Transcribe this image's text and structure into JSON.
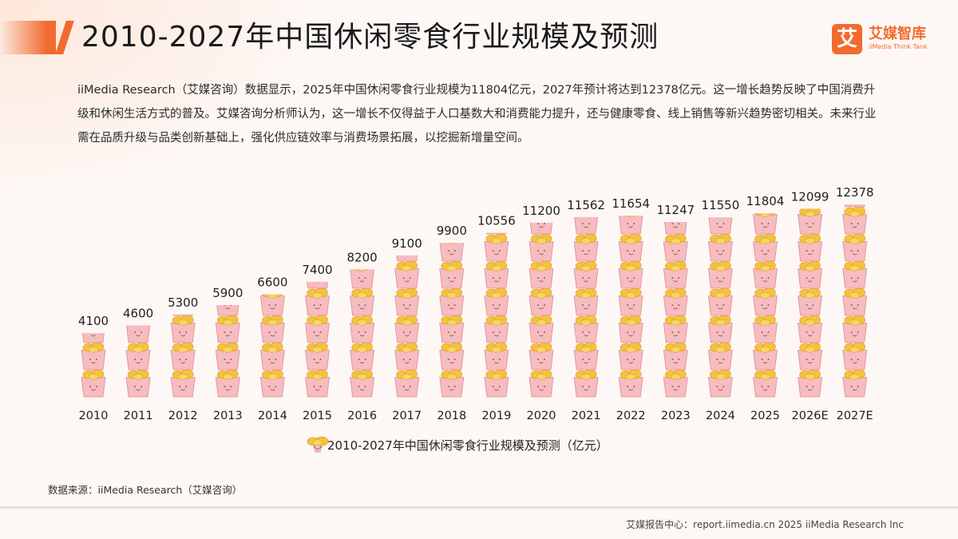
{
  "header": {
    "title": "2010-2027年中国休闲零食行业规模及预测",
    "logo_mark": "艾",
    "logo_cn": "艾媒智库",
    "logo_en": "iiMedia Think Tank"
  },
  "description": "iiMedia Research（艾媒咨询）数据显示，2025年中国休闲零食行业规模为11804亿元，2027年预计将达到12378亿元。这一增长趋势反映了中国消费升级和休闲生活方式的普及。艾媒咨询分析师认为，这一增长不仅得益于人口基数大和消费能力提升，还与健康零食、线上销售等新兴趋势密切相关。未来行业需在品质升级与品类创新基础上，强化供应链效率与消费场景拓展，以挖掘新增量空间。",
  "chart_data": {
    "type": "bar",
    "title": "",
    "xlabel": "",
    "ylabel": "",
    "ylim": [
      0,
      12378
    ],
    "categories": [
      "2010",
      "2011",
      "2012",
      "2013",
      "2014",
      "2015",
      "2016",
      "2017",
      "2018",
      "2019",
      "2020",
      "2021",
      "2022",
      "2023",
      "2024",
      "2025",
      "2026E",
      "2027E"
    ],
    "series": [
      {
        "name": "2010-2027年中国休闲零食行业规模及预测（亿元）",
        "values": [
          4100,
          4600,
          5300,
          5900,
          6600,
          7400,
          8200,
          9100,
          9900,
          10556,
          11200,
          11562,
          11654,
          11247,
          11550,
          11804,
          12099,
          12378
        ]
      }
    ],
    "grid": false,
    "legend": "bottom-center",
    "colors": {
      "cup": "#f6bcc0",
      "cup_dark": "#e08a92",
      "snack": "#f5c23c",
      "snack_dark": "#d99a1d"
    }
  },
  "source": "数据来源：iiMedia Research（艾媒咨询）",
  "footer": "艾媒报告中心：report.iimedia.cn  2025 iiMedia Research Inc"
}
